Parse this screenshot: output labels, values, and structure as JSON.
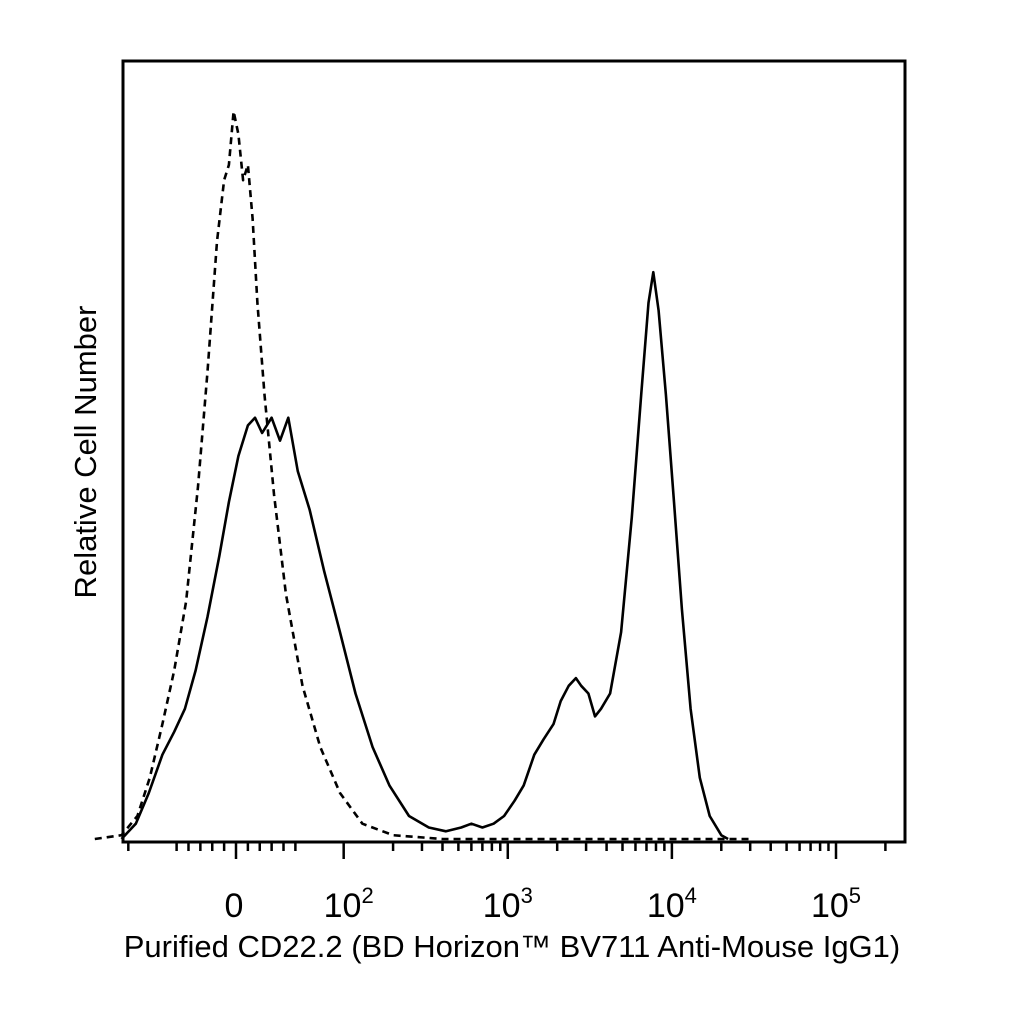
{
  "chart_data": {
    "type": "line",
    "title": "",
    "xlabel": "Purified CD22.2 (BD Horizon™ BV711 Anti-Mouse IgG1)",
    "ylabel": "Relative Cell Number",
    "x_scale": "biexponential",
    "xlim": [
      -160,
      250000
    ],
    "ylim": [
      0,
      100
    ],
    "grid": false,
    "legend": "none",
    "x_tick_labels": [
      {
        "value": 0,
        "base": "0",
        "exp": ""
      },
      {
        "value": 100,
        "base": "10",
        "exp": "2"
      },
      {
        "value": 1000,
        "base": "10",
        "exp": "3"
      },
      {
        "value": 10000,
        "base": "10",
        "exp": "4"
      },
      {
        "value": 100000,
        "base": "10",
        "exp": "5"
      }
    ],
    "series": [
      {
        "style": "solid",
        "points": [
          [
            -110,
            0
          ],
          [
            -90,
            2
          ],
          [
            -75,
            6
          ],
          [
            -62,
            11
          ],
          [
            -52,
            14
          ],
          [
            -43,
            17
          ],
          [
            -34,
            22
          ],
          [
            -24,
            29
          ],
          [
            -14,
            37
          ],
          [
            -6,
            44
          ],
          [
            2,
            50
          ],
          [
            10,
            54
          ],
          [
            16,
            55
          ],
          [
            22,
            53
          ],
          [
            30,
            55
          ],
          [
            37,
            52
          ],
          [
            44,
            55
          ],
          [
            52,
            48
          ],
          [
            62,
            43
          ],
          [
            76,
            35
          ],
          [
            95,
            27
          ],
          [
            118,
            19
          ],
          [
            150,
            12
          ],
          [
            190,
            7
          ],
          [
            250,
            3
          ],
          [
            330,
            1.5
          ],
          [
            420,
            1
          ],
          [
            520,
            1.5
          ],
          [
            600,
            2
          ],
          [
            700,
            1.5
          ],
          [
            820,
            2
          ],
          [
            950,
            3
          ],
          [
            1100,
            5
          ],
          [
            1250,
            7
          ],
          [
            1450,
            11
          ],
          [
            1650,
            13
          ],
          [
            1900,
            15
          ],
          [
            2100,
            18
          ],
          [
            2350,
            20
          ],
          [
            2600,
            21
          ],
          [
            2800,
            20
          ],
          [
            3100,
            19
          ],
          [
            3400,
            16
          ],
          [
            3700,
            17
          ],
          [
            4200,
            19
          ],
          [
            4900,
            27
          ],
          [
            5700,
            42
          ],
          [
            6500,
            58
          ],
          [
            7200,
            70
          ],
          [
            7700,
            74
          ],
          [
            8300,
            69
          ],
          [
            9200,
            58
          ],
          [
            10300,
            44
          ],
          [
            11500,
            30
          ],
          [
            13000,
            17
          ],
          [
            14800,
            8
          ],
          [
            17000,
            3
          ],
          [
            20000,
            0.5
          ],
          [
            22000,
            0
          ]
        ]
      },
      {
        "style": "dashed",
        "points": [
          [
            -160,
            0
          ],
          [
            -110,
            0.5
          ],
          [
            -88,
            3
          ],
          [
            -74,
            8
          ],
          [
            -62,
            15
          ],
          [
            -52,
            22
          ],
          [
            -42,
            31
          ],
          [
            -32,
            46
          ],
          [
            -24,
            61
          ],
          [
            -16,
            78
          ],
          [
            -10,
            86
          ],
          [
            -6,
            88
          ],
          [
            -2,
            95
          ],
          [
            2,
            92
          ],
          [
            6,
            86
          ],
          [
            10,
            88
          ],
          [
            14,
            81
          ],
          [
            18,
            70
          ],
          [
            24,
            58
          ],
          [
            32,
            45
          ],
          [
            42,
            32
          ],
          [
            56,
            20
          ],
          [
            72,
            12
          ],
          [
            95,
            6
          ],
          [
            130,
            2
          ],
          [
            200,
            0.5
          ],
          [
            400,
            0
          ],
          [
            30000,
            0
          ]
        ]
      }
    ]
  }
}
